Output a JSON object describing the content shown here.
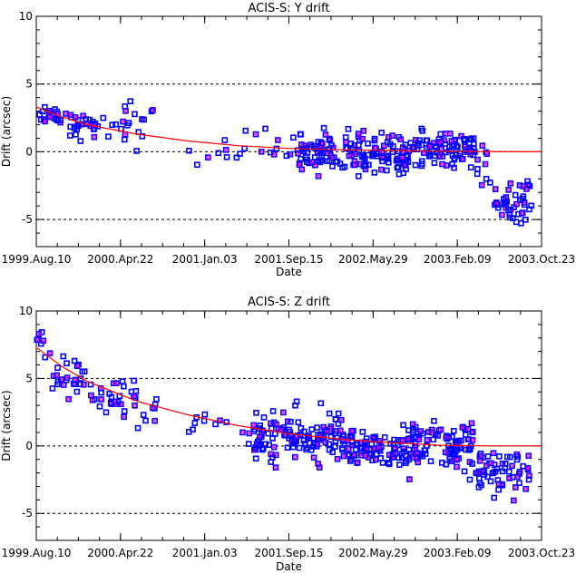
{
  "chart_data": [
    {
      "type": "scatter",
      "title": "ACIS-S: Y drift",
      "xlabel": "Date",
      "ylabel": "Drift (arcsec)",
      "xticks": [
        "1999.Aug.10",
        "2000.Apr.22",
        "2001.Jan.03",
        "2001.Sep.15",
        "2002.May.29",
        "2003.Feb.09",
        "2003.Oct.23"
      ],
      "xlim": [
        "1999.Aug.10",
        "2003.Oct.23"
      ],
      "ylim": [
        -7,
        10
      ],
      "yticks": [
        -5,
        0,
        5,
        10
      ],
      "hlines": [
        -5,
        0,
        5
      ],
      "colors": {
        "points": "#0000ff",
        "fit": "#ff0000",
        "hlines": "#000000"
      },
      "fit_curve": [
        [
          0.0,
          3.3
        ],
        [
          0.04,
          2.7
        ],
        [
          0.1,
          2.0
        ],
        [
          0.2,
          1.3
        ],
        [
          0.3,
          0.8
        ],
        [
          0.4,
          0.45
        ],
        [
          0.5,
          0.25
        ],
        [
          0.6,
          0.15
        ],
        [
          0.7,
          0.1
        ],
        [
          0.8,
          0.05
        ],
        [
          0.87,
          0.02
        ],
        [
          1.0,
          0.0
        ]
      ],
      "clusters": [
        {
          "x0": 0.0,
          "x1": 0.06,
          "ymean": 2.8,
          "ysd": 0.4,
          "n": 20
        },
        {
          "x0": 0.06,
          "x1": 0.14,
          "ymean": 2.0,
          "ysd": 0.5,
          "n": 28
        },
        {
          "x0": 0.14,
          "x1": 0.2,
          "ymean": 2.1,
          "ysd": 0.9,
          "n": 14
        },
        {
          "x0": 0.2,
          "x1": 0.24,
          "ymean": 2.3,
          "ysd": 0.8,
          "n": 6
        },
        {
          "x0": 0.28,
          "x1": 0.4,
          "ymean": 0.1,
          "ysd": 0.6,
          "n": 8
        },
        {
          "x0": 0.4,
          "x1": 0.52,
          "ymean": 0.2,
          "ysd": 0.7,
          "n": 15
        },
        {
          "x0": 0.52,
          "x1": 0.74,
          "ymean": -0.1,
          "ysd": 0.7,
          "n": 150
        },
        {
          "x0": 0.74,
          "x1": 0.87,
          "ymean": 0.1,
          "ysd": 0.6,
          "n": 90
        },
        {
          "x0": 0.87,
          "x1": 0.9,
          "ymean": -1.0,
          "ysd": 0.8,
          "n": 10
        },
        {
          "x0": 0.9,
          "x1": 0.98,
          "ymean": -3.8,
          "ysd": 0.9,
          "n": 45
        }
      ]
    },
    {
      "type": "scatter",
      "title": "ACIS-S: Z drift",
      "xlabel": "Date",
      "ylabel": "Drift (arcsec)",
      "xticks": [
        "1999.Aug.10",
        "2000.Apr.22",
        "2001.Jan.03",
        "2001.Sep.15",
        "2002.May.29",
        "2003.Feb.09",
        "2003.Oct.23"
      ],
      "xlim": [
        "1999.Aug.10",
        "2003.Oct.23"
      ],
      "ylim": [
        -7,
        10
      ],
      "yticks": [
        -5,
        0,
        5,
        10
      ],
      "hlines": [
        -5,
        0,
        5
      ],
      "colors": {
        "points": "#0000ff",
        "fit": "#ff0000",
        "hlines": "#000000"
      },
      "fit_curve": [
        [
          0.0,
          7.3
        ],
        [
          0.05,
          5.9
        ],
        [
          0.1,
          4.8
        ],
        [
          0.2,
          3.3
        ],
        [
          0.3,
          2.3
        ],
        [
          0.4,
          1.5
        ],
        [
          0.5,
          0.9
        ],
        [
          0.6,
          0.5
        ],
        [
          0.7,
          0.25
        ],
        [
          0.8,
          0.05
        ],
        [
          0.9,
          0.0
        ],
        [
          1.0,
          0.0
        ]
      ],
      "clusters": [
        {
          "x0": 0.0,
          "x1": 0.03,
          "ymean": 7.5,
          "ysd": 0.6,
          "n": 8
        },
        {
          "x0": 0.03,
          "x1": 0.1,
          "ymean": 5.0,
          "ysd": 0.8,
          "n": 25
        },
        {
          "x0": 0.1,
          "x1": 0.2,
          "ymean": 3.6,
          "ysd": 0.8,
          "n": 30
        },
        {
          "x0": 0.2,
          "x1": 0.26,
          "ymean": 2.6,
          "ysd": 0.6,
          "n": 8
        },
        {
          "x0": 0.3,
          "x1": 0.42,
          "ymean": 1.5,
          "ysd": 0.8,
          "n": 10
        },
        {
          "x0": 0.42,
          "x1": 0.6,
          "ymean": 0.5,
          "ysd": 1.0,
          "n": 120
        },
        {
          "x0": 0.6,
          "x1": 0.87,
          "ymean": 0.0,
          "ysd": 0.9,
          "n": 200
        },
        {
          "x0": 0.87,
          "x1": 0.98,
          "ymean": -1.6,
          "ysd": 1.0,
          "n": 60
        }
      ]
    }
  ]
}
